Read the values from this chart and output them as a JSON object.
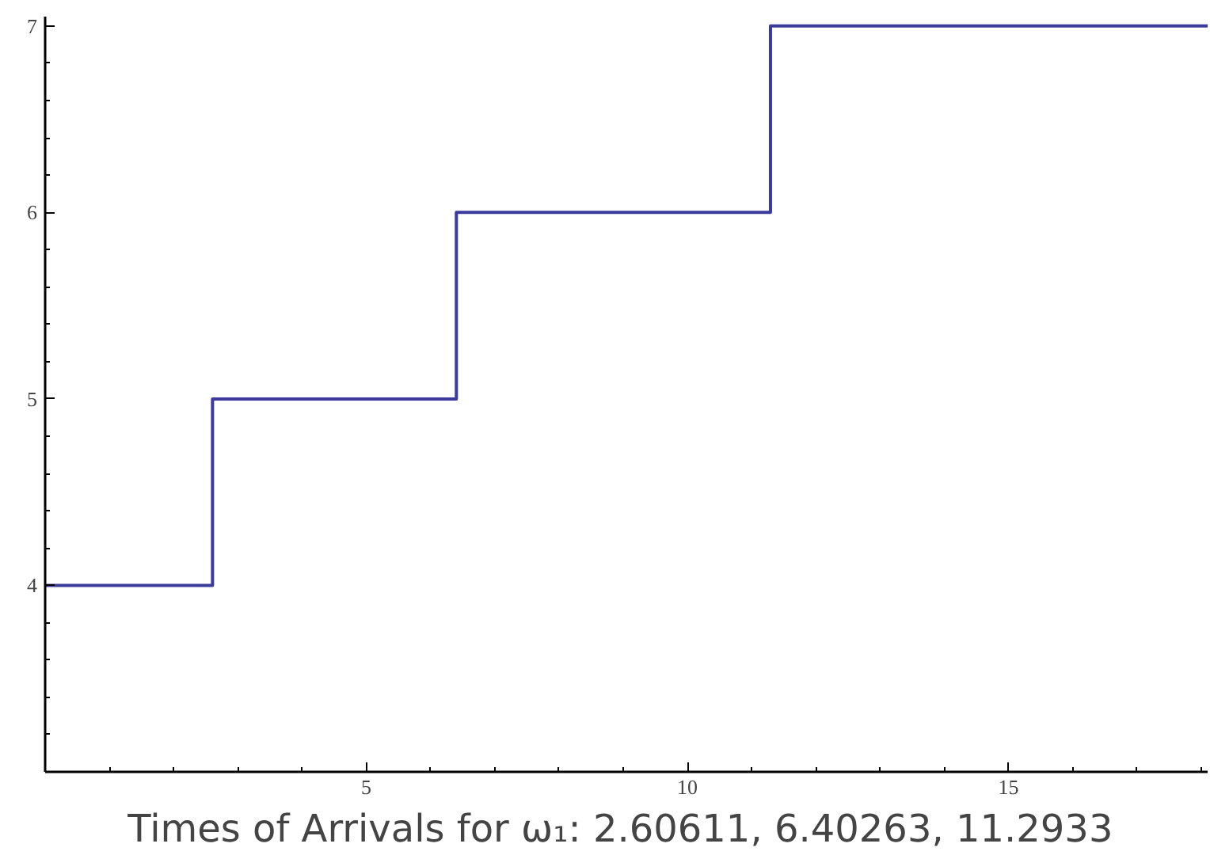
{
  "chart_data": {
    "type": "step",
    "xlabel": "Times of Arrivals for ω₁:  2.60611, 6.40263, 11.2933",
    "x": [
      0,
      2.60611,
      6.40263,
      11.2933,
      18.1
    ],
    "series": [
      {
        "color": "#3b3b9b",
        "values": [
          4,
          5,
          6,
          7,
          7
        ]
      }
    ],
    "xlim": [
      0,
      18.1
    ],
    "ylim": [
      3,
      7.05
    ],
    "xticks": [
      5,
      10,
      15
    ],
    "yticks": [
      4,
      5,
      6,
      7
    ],
    "grid": false,
    "marker": "none",
    "line_style": "solid"
  }
}
